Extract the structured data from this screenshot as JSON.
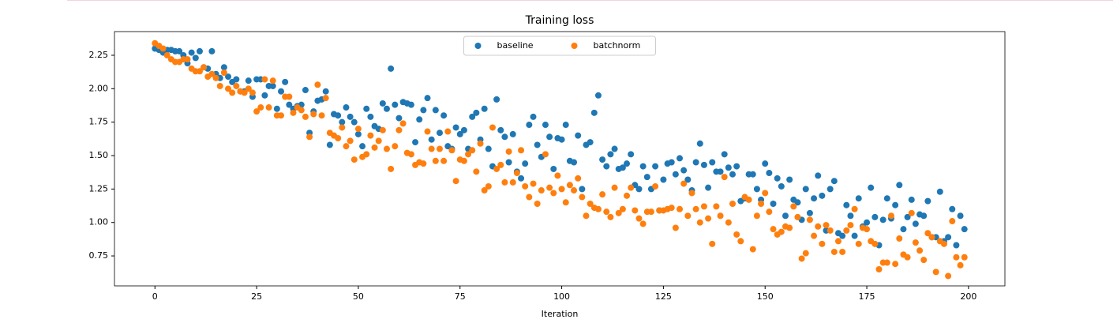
{
  "chart_data": {
    "type": "scatter",
    "title": "Training loss",
    "x_label": "Iteration",
    "x": [
      0,
      1,
      2,
      3,
      4,
      5,
      6,
      7,
      8,
      9,
      10,
      11,
      12,
      13,
      14,
      15,
      16,
      17,
      18,
      19,
      20,
      21,
      22,
      23,
      24,
      25,
      26,
      27,
      28,
      29,
      30,
      31,
      32,
      33,
      34,
      35,
      36,
      37,
      38,
      39,
      40,
      41,
      42,
      43,
      44,
      45,
      46,
      47,
      48,
      49,
      50,
      51,
      52,
      53,
      54,
      55,
      56,
      57,
      58,
      59,
      60,
      61,
      62,
      63,
      64,
      65,
      66,
      67,
      68,
      69,
      70,
      71,
      72,
      73,
      74,
      75,
      76,
      77,
      78,
      79,
      80,
      81,
      82,
      83,
      84,
      85,
      86,
      87,
      88,
      89,
      90,
      91,
      92,
      93,
      94,
      95,
      96,
      97,
      98,
      99,
      100,
      101,
      102,
      103,
      104,
      105,
      106,
      107,
      108,
      109,
      110,
      111,
      112,
      113,
      114,
      115,
      116,
      117,
      118,
      119,
      120,
      121,
      122,
      123,
      124,
      125,
      126,
      127,
      128,
      129,
      130,
      131,
      132,
      133,
      134,
      135,
      136,
      137,
      138,
      139,
      140,
      141,
      142,
      143,
      144,
      145,
      146,
      147,
      148,
      149,
      150,
      151,
      152,
      153,
      154,
      155,
      156,
      157,
      158,
      159,
      160,
      161,
      162,
      163,
      164,
      165,
      166,
      167,
      168,
      169,
      170,
      171,
      172,
      173,
      174,
      175,
      176,
      177,
      178,
      179,
      180,
      181,
      182,
      183,
      184,
      185,
      186,
      187,
      188,
      189,
      190,
      191,
      192,
      193,
      194,
      195,
      196,
      197,
      198,
      199
    ],
    "series": [
      {
        "name": "baseline",
        "color": "#1f77b4",
        "values": [
          2.3,
          2.29,
          2.27,
          2.29,
          2.29,
          2.28,
          2.28,
          2.25,
          2.19,
          2.27,
          2.23,
          2.28,
          2.16,
          2.15,
          2.28,
          2.11,
          2.08,
          2.16,
          2.09,
          2.05,
          2.07,
          1.98,
          1.98,
          2.06,
          1.94,
          2.07,
          2.07,
          1.95,
          2.02,
          2.02,
          1.85,
          1.98,
          2.05,
          1.88,
          1.85,
          1.87,
          1.88,
          1.99,
          1.67,
          1.83,
          1.91,
          1.92,
          1.98,
          1.58,
          1.81,
          1.8,
          1.75,
          1.86,
          1.79,
          1.75,
          1.66,
          1.57,
          1.85,
          1.79,
          1.72,
          1.7,
          1.89,
          1.85,
          2.15,
          1.88,
          1.78,
          1.9,
          1.89,
          1.88,
          1.6,
          1.77,
          1.84,
          1.93,
          1.62,
          1.84,
          1.67,
          1.8,
          1.57,
          1.55,
          1.71,
          1.66,
          1.69,
          1.55,
          1.79,
          1.82,
          1.62,
          1.85,
          1.55,
          1.42,
          1.92,
          1.69,
          1.64,
          1.45,
          1.66,
          1.38,
          1.33,
          1.44,
          1.73,
          1.79,
          1.58,
          1.49,
          1.73,
          1.64,
          1.4,
          1.63,
          1.62,
          1.73,
          1.46,
          1.45,
          1.65,
          1.25,
          1.58,
          1.6,
          1.82,
          1.95,
          1.47,
          1.42,
          1.51,
          1.55,
          1.4,
          1.41,
          1.44,
          1.51,
          1.28,
          1.25,
          1.42,
          1.34,
          1.25,
          1.42,
          1.09,
          1.32,
          1.44,
          1.45,
          1.36,
          1.48,
          1.39,
          1.32,
          1.24,
          1.45,
          1.59,
          1.43,
          1.26,
          1.45,
          1.38,
          1.38,
          1.51,
          1.41,
          1.36,
          1.42,
          1.16,
          1.18,
          1.36,
          1.36,
          1.25,
          1.17,
          1.44,
          1.37,
          1.14,
          1.33,
          1.27,
          1.05,
          1.32,
          1.17,
          1.15,
          1.02,
          1.25,
          1.07,
          1.18,
          1.35,
          1.2,
          0.94,
          1.25,
          1.31,
          0.92,
          0.9,
          1.13,
          1.05,
          0.9,
          1.18,
          0.97,
          1.0,
          1.26,
          1.04,
          0.83,
          1.02,
          1.18,
          1.03,
          1.13,
          1.28,
          0.95,
          1.04,
          1.17,
          0.99,
          1.06,
          1.05,
          1.16,
          0.89,
          0.89,
          1.23,
          0.86,
          0.89,
          1.1,
          0.83,
          1.05,
          0.95
        ]
      },
      {
        "name": "batchnorm",
        "color": "#ff7f0e",
        "values": [
          2.34,
          2.32,
          2.3,
          2.25,
          2.22,
          2.2,
          2.2,
          2.22,
          2.22,
          2.15,
          2.13,
          2.13,
          2.16,
          2.09,
          2.11,
          2.08,
          2.02,
          2.12,
          2.0,
          1.97,
          2.02,
          1.98,
          1.97,
          2.0,
          1.97,
          1.83,
          1.86,
          2.07,
          1.86,
          2.06,
          1.8,
          1.8,
          1.94,
          1.94,
          1.82,
          1.86,
          1.84,
          1.79,
          1.64,
          1.81,
          2.03,
          1.8,
          1.93,
          1.67,
          1.65,
          1.63,
          1.71,
          1.57,
          1.61,
          1.47,
          1.7,
          1.49,
          1.51,
          1.65,
          1.56,
          1.61,
          1.69,
          1.55,
          1.4,
          1.57,
          1.69,
          1.74,
          1.52,
          1.51,
          1.43,
          1.45,
          1.44,
          1.68,
          1.55,
          1.46,
          1.55,
          1.46,
          1.68,
          1.54,
          1.31,
          1.47,
          1.46,
          1.51,
          1.54,
          1.38,
          1.59,
          1.24,
          1.27,
          1.71,
          1.4,
          1.43,
          1.3,
          1.53,
          1.3,
          1.37,
          1.54,
          1.27,
          1.19,
          1.29,
          1.14,
          1.24,
          1.51,
          1.26,
          1.22,
          1.35,
          1.25,
          1.15,
          1.28,
          1.24,
          1.33,
          1.19,
          1.05,
          1.14,
          1.11,
          1.1,
          1.21,
          1.08,
          1.04,
          1.26,
          1.07,
          1.1,
          1.2,
          1.26,
          1.09,
          1.03,
          0.99,
          1.08,
          1.08,
          1.27,
          1.09,
          1.09,
          1.1,
          1.11,
          0.96,
          1.1,
          1.29,
          1.05,
          1.22,
          1.1,
          1.0,
          1.12,
          1.03,
          0.84,
          1.12,
          1.05,
          1.34,
          1.0,
          1.14,
          0.91,
          0.86,
          1.19,
          1.17,
          0.8,
          1.05,
          1.14,
          1.22,
          1.08,
          0.95,
          0.91,
          0.93,
          0.97,
          0.96,
          1.12,
          1.04,
          0.73,
          0.77,
          1.02,
          0.9,
          0.97,
          0.84,
          0.98,
          0.94,
          0.78,
          0.86,
          0.78,
          0.94,
          0.98,
          1.1,
          0.84,
          0.96,
          0.95,
          0.86,
          0.84,
          0.65,
          0.7,
          0.7,
          1.05,
          0.69,
          0.88,
          0.76,
          0.74,
          1.07,
          0.85,
          0.79,
          0.72,
          0.92,
          0.89,
          0.63,
          0.86,
          0.84,
          0.6,
          1.01,
          0.74,
          0.68,
          0.74
        ]
      }
    ],
    "xlim": [
      -9.95,
      208.95
    ],
    "ylim": [
      0.526,
      2.427
    ],
    "xticks": [
      0,
      25,
      50,
      75,
      100,
      125,
      150,
      175,
      200
    ],
    "yticks": [
      0.75,
      {
        "value": 1.0,
        "label": "1.00"
      },
      1.25,
      {
        "value": 1.5,
        "label": "1.50"
      },
      1.75,
      {
        "value": 2.0,
        "label": "2.00"
      },
      2.25
    ],
    "legend": "upper center"
  }
}
